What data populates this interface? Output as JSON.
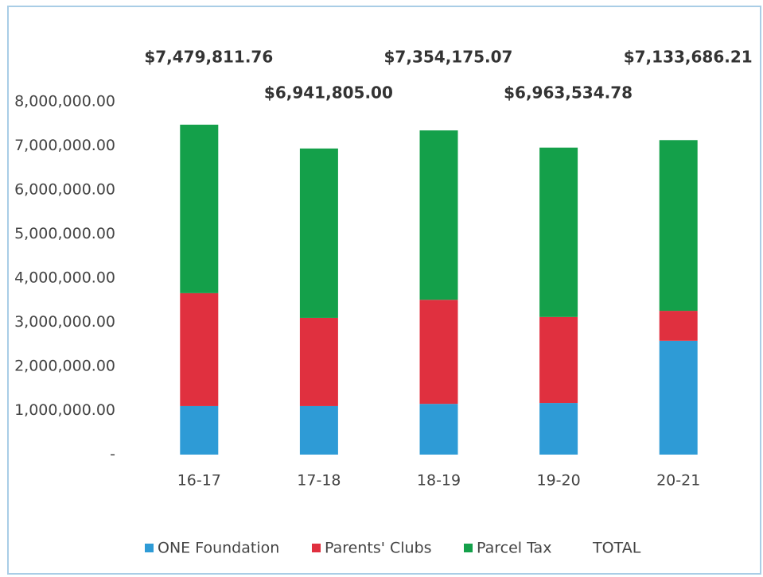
{
  "chart_data": {
    "type": "stacked_bar",
    "categories": [
      "16-17",
      "17-18",
      "18-19",
      "19-20",
      "20-21"
    ],
    "series": [
      {
        "name": "ONE Foundation",
        "color": "#2e9bd6",
        "values": [
          1100000,
          1100000,
          1150000,
          1170000,
          2580000
        ]
      },
      {
        "name": "Parents' Clubs",
        "color": "#e0303f",
        "values": [
          2560000,
          2000000,
          2360000,
          1950000,
          680000
        ]
      },
      {
        "name": "Parcel Tax",
        "color": "#14a04a",
        "values": [
          3820000,
          3840000,
          3840000,
          3840000,
          3870000
        ]
      },
      {
        "name": "TOTAL",
        "values": [
          7479811.76,
          6941805.0,
          7354175.07,
          6963534.78,
          7133686.21
        ],
        "value_labels": [
          "$7,479,811.76",
          "$6,941,805.00",
          "$7,354,175.07",
          "$6,963,534.78",
          "$7,133,686.21"
        ]
      }
    ],
    "ylim": [
      0,
      8000000
    ],
    "yticks": [
      {
        "value": 0,
        "label": "-"
      },
      {
        "value": 1000000,
        "label": "1,000,000.00"
      },
      {
        "value": 2000000,
        "label": "2,000,000.00"
      },
      {
        "value": 3000000,
        "label": "3,000,000.00"
      },
      {
        "value": 4000000,
        "label": "4,000,000.00"
      },
      {
        "value": 5000000,
        "label": "5,000,000.00"
      },
      {
        "value": 6000000,
        "label": "6,000,000.00"
      },
      {
        "value": 7000000,
        "label": "7,000,000.00"
      },
      {
        "value": 8000000,
        "label": "8,000,000.00"
      }
    ],
    "legend": "bottom"
  }
}
